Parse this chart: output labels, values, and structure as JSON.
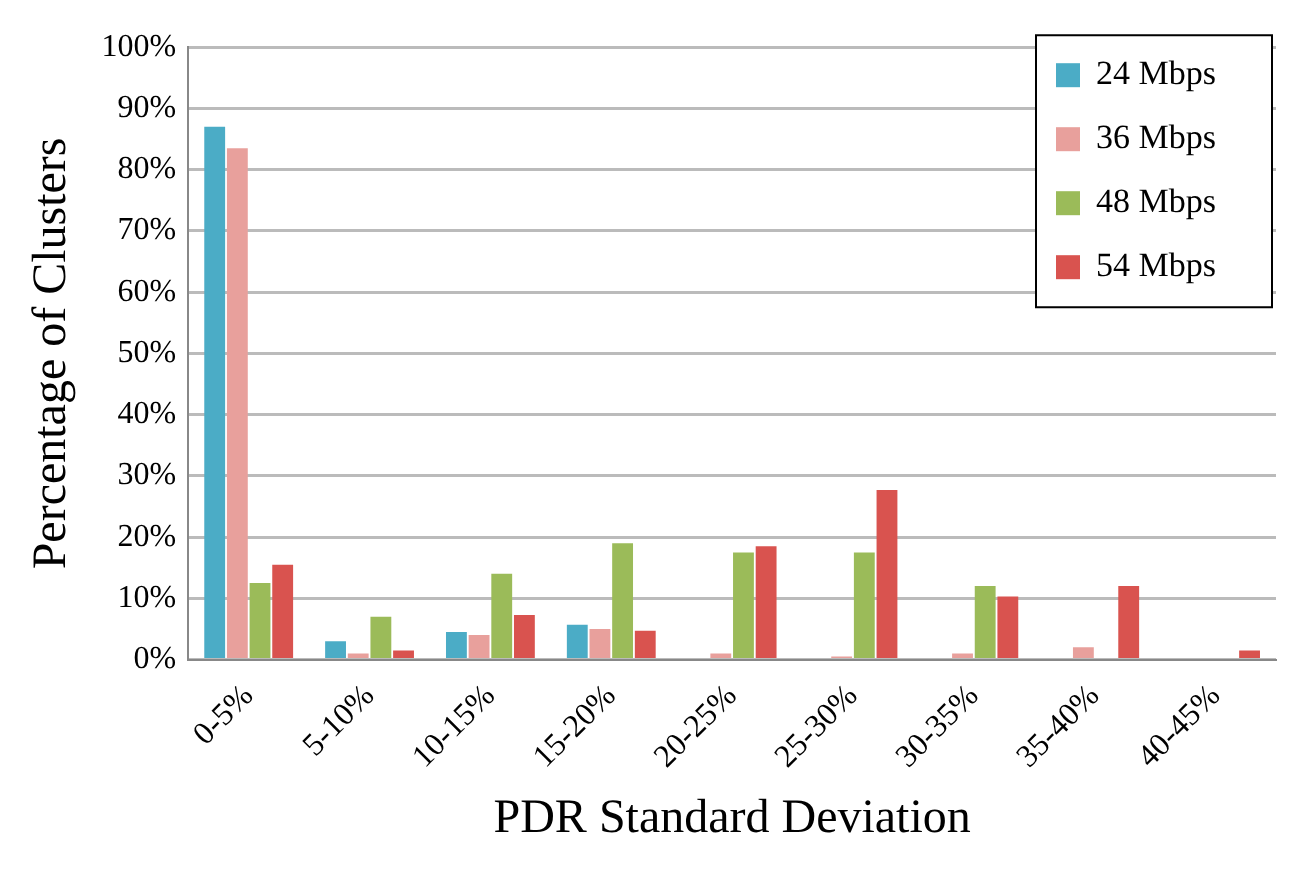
{
  "chart_data": {
    "type": "bar",
    "xlabel": "PDR Standard Deviation",
    "ylabel": "Percentage of Clusters",
    "categories": [
      "0-5%",
      "5-10%",
      "10-15%",
      "15-20%",
      "20-25%",
      "25-30%",
      "30-35%",
      "35-40%",
      "40-45%"
    ],
    "series": [
      {
        "name": "24 Mbps",
        "color": "#4bacc6",
        "values": [
          87,
          3,
          4.5,
          5.7,
          0,
          0,
          0,
          0,
          0
        ]
      },
      {
        "name": "36 Mbps",
        "color": "#e8a09c",
        "values": [
          83.5,
          1,
          4,
          5,
          1,
          0.5,
          1,
          2,
          0
        ]
      },
      {
        "name": "48 Mbps",
        "color": "#9bbb59",
        "values": [
          12.5,
          7,
          14,
          19,
          17.5,
          17.5,
          12,
          0,
          0
        ]
      },
      {
        "name": "54 Mbps",
        "color": "#d9534f",
        "values": [
          15.5,
          1.5,
          7.3,
          4.7,
          18.5,
          27.7,
          10.3,
          12,
          1.5
        ]
      }
    ],
    "ylim": [
      0,
      100
    ],
    "yticks": [
      {
        "value": 0,
        "label": "0%"
      },
      {
        "value": 10,
        "label": "10%"
      },
      {
        "value": 20,
        "label": "20%"
      },
      {
        "value": 30,
        "label": "30%"
      },
      {
        "value": 40,
        "label": "40%"
      },
      {
        "value": 50,
        "label": "50%"
      },
      {
        "value": 60,
        "label": "60%"
      },
      {
        "value": 70,
        "label": "70%"
      },
      {
        "value": 80,
        "label": "80%"
      },
      {
        "value": 90,
        "label": "90%"
      },
      {
        "value": 100,
        "label": "100%"
      }
    ],
    "grid": "y",
    "legend": "top right"
  }
}
